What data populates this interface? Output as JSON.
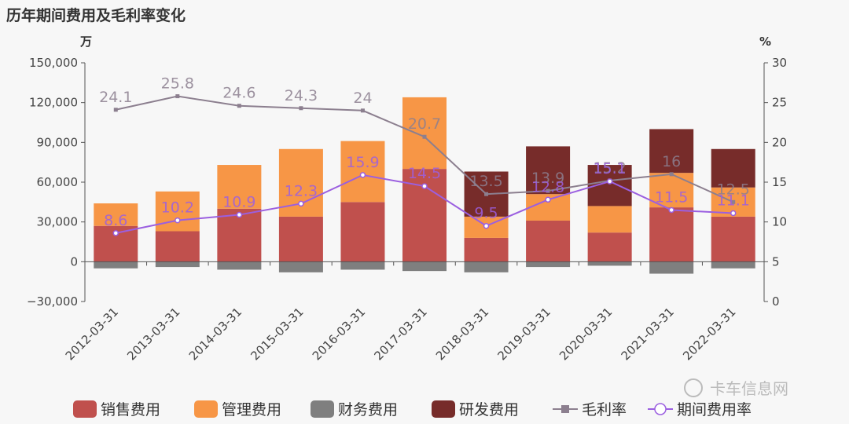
{
  "chart_data": {
    "type": "bar",
    "title": "历年期间费用及毛利率变化",
    "ylabel_left": "万",
    "ylabel_right": "%",
    "ylim_left": [
      -30000,
      150000
    ],
    "ylim_right": [
      0,
      30
    ],
    "yticks_left": [
      "−30,000",
      "0",
      "30,000",
      "60,000",
      "90,000",
      "120,000",
      "150,000"
    ],
    "yticks_right": [
      "0",
      "5",
      "10",
      "15",
      "20",
      "25",
      "30"
    ],
    "categories": [
      "2012-03-31",
      "2013-03-31",
      "2014-03-31",
      "2015-03-31",
      "2016-03-31",
      "2017-03-31",
      "2018-03-31",
      "2019-03-31",
      "2020-03-31",
      "2021-03-31",
      "2022-03-31"
    ],
    "bar_series": [
      {
        "name": "销售费用",
        "color": "#c0504d",
        "values": [
          27000,
          23000,
          40000,
          34000,
          45000,
          70000,
          18000,
          31000,
          22000,
          41000,
          34000
        ]
      },
      {
        "name": "管理费用",
        "color": "#f79646",
        "values": [
          17000,
          30000,
          33000,
          51000,
          46000,
          54000,
          16000,
          20000,
          20000,
          26000,
          22000
        ]
      },
      {
        "name": "财务费用",
        "color": "#7f7f7f",
        "values": [
          -5000,
          -4000,
          -6000,
          -8000,
          -6000,
          -7000,
          -8000,
          -4000,
          -3000,
          -9000,
          -5000
        ]
      },
      {
        "name": "研发费用",
        "color": "#772c2a",
        "values": [
          0,
          0,
          0,
          0,
          0,
          0,
          34000,
          36000,
          31000,
          33000,
          29000
        ]
      }
    ],
    "line_series": [
      {
        "name": "毛利率",
        "color": "#8c7f8f",
        "marker": "square",
        "values": [
          24.1,
          25.8,
          24.6,
          24.3,
          24,
          20.7,
          13.5,
          13.9,
          15.2,
          16,
          12.5
        ],
        "labels": [
          "24.1",
          "25.8",
          "24.6",
          "24.3",
          "24",
          "20.7",
          "13.5",
          "13.9",
          "15.2",
          "16",
          "12.5"
        ]
      },
      {
        "name": "期间费用率",
        "color": "#9b5fe0",
        "marker": "circle",
        "values": [
          8.6,
          10.2,
          10.9,
          12.3,
          15.9,
          14.5,
          9.5,
          12.8,
          15.1,
          11.5,
          11.1
        ],
        "labels": [
          "8.6",
          "10.2",
          "10.9",
          "12.3",
          "15.9",
          "14.5",
          "9.5",
          "12.8",
          "15.1",
          "11.5",
          "11.1"
        ]
      }
    ],
    "legend_position": "bottom"
  },
  "watermark": "卡车信息网"
}
